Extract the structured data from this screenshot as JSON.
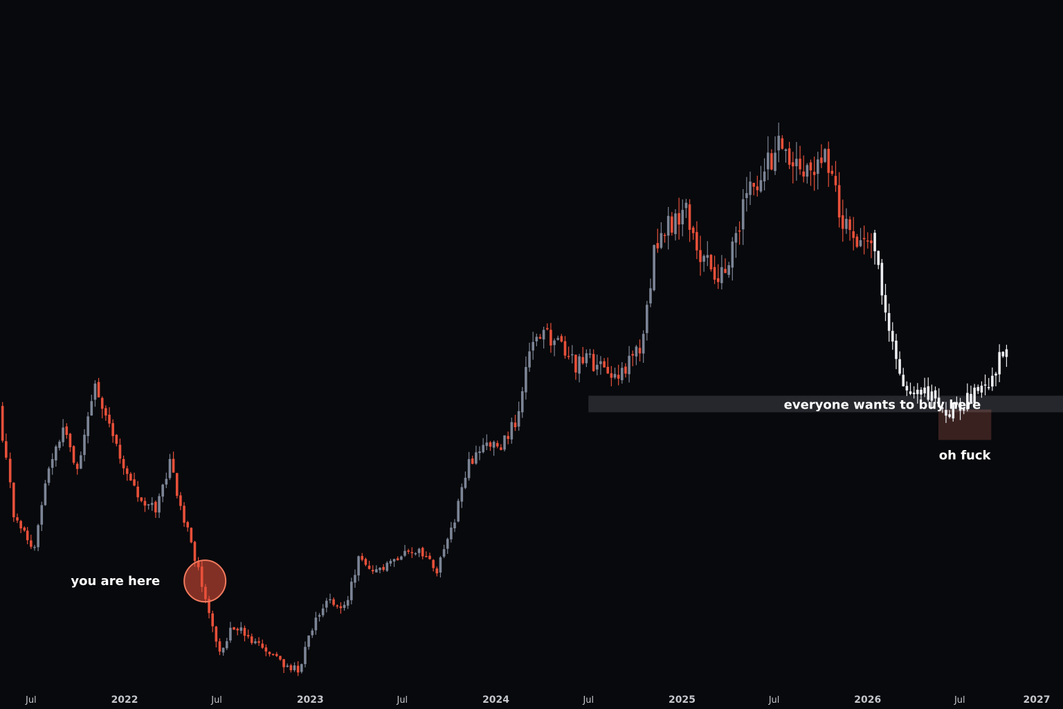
{
  "chart_data": {
    "type": "candlestick",
    "x_axis": {
      "type": "date",
      "range": [
        "2021-05-01",
        "2027-01-20"
      ],
      "ticks": [
        {
          "date": "2021-07-01",
          "label": "Jul",
          "major": false
        },
        {
          "date": "2022-01-01",
          "label": "2022",
          "major": true
        },
        {
          "date": "2022-07-01",
          "label": "Jul",
          "major": false
        },
        {
          "date": "2023-01-01",
          "label": "2023",
          "major": true
        },
        {
          "date": "2023-07-01",
          "label": "Jul",
          "major": false
        },
        {
          "date": "2024-01-01",
          "label": "2024",
          "major": true
        },
        {
          "date": "2024-07-01",
          "label": "Jul",
          "major": false
        },
        {
          "date": "2025-01-01",
          "label": "2025",
          "major": true
        },
        {
          "date": "2025-07-01",
          "label": "Jul",
          "major": false
        },
        {
          "date": "2026-01-01",
          "label": "2026",
          "major": true
        },
        {
          "date": "2026-07-01",
          "label": "Jul",
          "major": false
        },
        {
          "date": "2027-01-01",
          "label": "2027",
          "major": true
        }
      ]
    },
    "y_axis": {
      "shown": false,
      "range": [
        8,
        115
      ]
    },
    "grid": false,
    "colors": {
      "background": "#08090c",
      "bullish": "#7c8596",
      "bearish": "#e8503a",
      "projection": "#eceef2",
      "axis_text": "#c3c6cc",
      "annotation_text": "#ffffff"
    },
    "series": [
      {
        "style": "historical",
        "points": [
          [
            "2021-05-03",
            56.5
          ],
          [
            "2021-06-01",
            37
          ],
          [
            "2021-07-12",
            31
          ],
          [
            "2021-08-09",
            46
          ],
          [
            "2021-09-06",
            52
          ],
          [
            "2021-10-04",
            46
          ],
          [
            "2021-11-08",
            60
          ],
          [
            "2021-12-13",
            52
          ],
          [
            "2022-01-10",
            44
          ],
          [
            "2022-02-07",
            39
          ],
          [
            "2022-03-07",
            38
          ],
          [
            "2022-04-04",
            46
          ],
          [
            "2022-05-09",
            34
          ],
          [
            "2022-06-13",
            22
          ],
          [
            "2022-07-11",
            12
          ],
          [
            "2022-08-08",
            17
          ],
          [
            "2022-09-12",
            14
          ],
          [
            "2022-10-10",
            12
          ],
          [
            "2022-11-14",
            10
          ],
          [
            "2022-12-12",
            9
          ],
          [
            "2023-01-16",
            18
          ],
          [
            "2023-02-13",
            22
          ],
          [
            "2023-03-13",
            20
          ],
          [
            "2023-04-10",
            29
          ],
          [
            "2023-05-08",
            26
          ],
          [
            "2023-06-12",
            28
          ],
          [
            "2023-07-10",
            31
          ],
          [
            "2023-08-07",
            30
          ],
          [
            "2023-09-11",
            27
          ],
          [
            "2023-10-09",
            34
          ],
          [
            "2023-11-13",
            46
          ],
          [
            "2023-12-11",
            50
          ],
          [
            "2024-01-15",
            49
          ],
          [
            "2024-02-12",
            54
          ],
          [
            "2024-03-11",
            66
          ],
          [
            "2024-04-08",
            70
          ],
          [
            "2024-05-13",
            67
          ],
          [
            "2024-06-10",
            64
          ],
          [
            "2024-07-08",
            65
          ],
          [
            "2024-08-12",
            62
          ],
          [
            "2024-09-09",
            63
          ],
          [
            "2024-10-14",
            67
          ],
          [
            "2024-11-11",
            84
          ],
          [
            "2024-12-09",
            89
          ],
          [
            "2025-01-13",
            92
          ],
          [
            "2025-02-10",
            84
          ],
          [
            "2025-03-10",
            80
          ],
          [
            "2025-04-07",
            83
          ],
          [
            "2025-05-12",
            95
          ],
          [
            "2025-06-09",
            98
          ],
          [
            "2025-07-14",
            103
          ],
          [
            "2025-08-11",
            101
          ],
          [
            "2025-09-15",
            99
          ],
          [
            "2025-10-13",
            104
          ],
          [
            "2025-11-10",
            92
          ],
          [
            "2025-12-08",
            87
          ],
          [
            "2026-01-12",
            88
          ]
        ]
      },
      {
        "style": "projection",
        "points": [
          [
            "2026-01-12",
            88
          ],
          [
            "2026-02-09",
            74
          ],
          [
            "2026-03-09",
            62
          ],
          [
            "2026-04-06",
            58
          ],
          [
            "2026-05-11",
            59
          ],
          [
            "2026-06-08",
            55
          ],
          [
            "2026-07-06",
            57
          ],
          [
            "2026-08-10",
            59
          ],
          [
            "2026-09-07",
            62
          ],
          [
            "2026-10-05",
            68
          ]
        ]
      }
    ],
    "annotations": [
      {
        "text": "you are here",
        "date": "2022-06-08",
        "price": 25
      },
      {
        "text": "everyone wants to buy here",
        "date_start": "2024-07-01",
        "date_end": "2027-01-20",
        "price_low": 55.5,
        "price_high": 58.5
      },
      {
        "text": "oh fuck",
        "date_start": "2026-05-20",
        "date_end": "2026-09-01",
        "price_low": 50.5,
        "price_high": 56
      }
    ]
  }
}
